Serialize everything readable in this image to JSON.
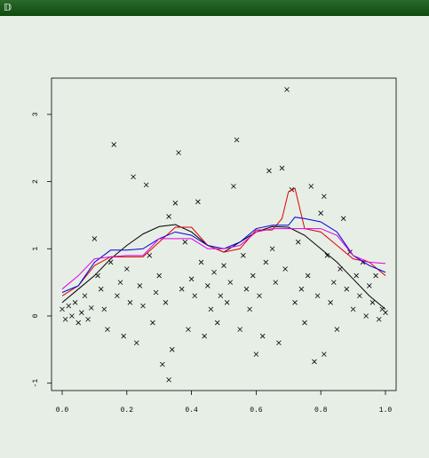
{
  "header": {
    "symbol": "𝔻"
  },
  "chart_data": {
    "type": "scatter",
    "xlim": [
      -0.033,
      1.033
    ],
    "ylim": [
      -1.11,
      3.54
    ],
    "xticks": [
      {
        "value": 0,
        "label": "0.0"
      },
      0.2,
      0.4,
      0.6,
      0.8,
      {
        "value": 1,
        "label": "1.0"
      }
    ],
    "yticks": [
      -1,
      0,
      1,
      2,
      3
    ],
    "series": [
      {
        "mode": "markers",
        "color": "#000000",
        "x": [
          0.16,
          0.36,
          0.22,
          0.26,
          0.54,
          0.64,
          0.68,
          0.695,
          0.71,
          0.53,
          0.77,
          0.81,
          0.42,
          0.35,
          0.33,
          0.8,
          0.87,
          0.1,
          0.33,
          0.31,
          0.6,
          0.78,
          0.81,
          0.0,
          0.01,
          0.02,
          0.03,
          0.04,
          0.05,
          0.06,
          0.07,
          0.08,
          0.09,
          0.11,
          0.12,
          0.13,
          0.14,
          0.15,
          0.17,
          0.18,
          0.19,
          0.2,
          0.21,
          0.23,
          0.24,
          0.25,
          0.27,
          0.28,
          0.29,
          0.3,
          0.32,
          0.34,
          0.37,
          0.38,
          0.39,
          0.4,
          0.41,
          0.43,
          0.44,
          0.45,
          0.46,
          0.47,
          0.48,
          0.49,
          0.5,
          0.51,
          0.52,
          0.55,
          0.56,
          0.57,
          0.58,
          0.59,
          0.61,
          0.62,
          0.63,
          0.65,
          0.66,
          0.67,
          0.69,
          0.72,
          0.73,
          0.74,
          0.75,
          0.76,
          0.79,
          0.82,
          0.83,
          0.84,
          0.85,
          0.86,
          0.88,
          0.89,
          0.9,
          0.91,
          0.92,
          0.93,
          0.94,
          0.95,
          0.96,
          0.97,
          0.98,
          0.99,
          1.0
        ],
        "values": [
          2.55,
          2.43,
          2.07,
          1.95,
          2.62,
          2.16,
          2.2,
          3.37,
          1.88,
          1.93,
          1.93,
          1.78,
          1.7,
          1.68,
          1.48,
          1.53,
          1.45,
          1.15,
          -0.95,
          -0.72,
          -0.57,
          -0.68,
          -0.57,
          0.1,
          -0.05,
          0.15,
          0.0,
          0.2,
          -0.1,
          0.05,
          0.3,
          -0.05,
          0.12,
          0.6,
          0.4,
          0.1,
          -0.2,
          0.8,
          0.3,
          0.5,
          -0.3,
          0.7,
          0.2,
          -0.4,
          0.45,
          0.15,
          0.9,
          -0.1,
          0.35,
          0.6,
          0.2,
          -0.5,
          0.4,
          1.1,
          -0.2,
          0.55,
          0.3,
          0.8,
          -0.3,
          0.45,
          0.1,
          0.65,
          -0.1,
          0.3,
          0.75,
          0.2,
          0.5,
          -0.2,
          0.9,
          0.4,
          0.1,
          0.6,
          0.3,
          -0.3,
          0.8,
          1.0,
          0.5,
          -0.4,
          0.7,
          0.2,
          1.1,
          0.4,
          -0.1,
          0.6,
          0.3,
          0.9,
          0.2,
          0.5,
          -0.2,
          0.7,
          0.4,
          0.95,
          0.1,
          0.6,
          0.3,
          0.8,
          0.0,
          0.45,
          0.2,
          0.6,
          -0.05,
          0.1,
          0.05
        ]
      },
      {
        "mode": "line",
        "color": "#000000",
        "x": [
          0,
          0.05,
          0.1,
          0.15,
          0.2,
          0.25,
          0.3,
          0.35,
          0.4,
          0.45,
          0.5,
          0.55,
          0.6,
          0.65,
          0.7,
          0.75,
          0.8,
          0.85,
          0.9,
          0.95,
          1.0
        ],
        "values": [
          0.2,
          0.4,
          0.6,
          0.85,
          1.05,
          1.22,
          1.33,
          1.36,
          1.25,
          1.05,
          0.95,
          1.1,
          1.25,
          1.33,
          1.32,
          1.2,
          1.0,
          0.8,
          0.55,
          0.3,
          0.1
        ]
      },
      {
        "mode": "line",
        "color": "#e00000",
        "x": [
          0,
          0.05,
          0.1,
          0.15,
          0.2,
          0.25,
          0.3,
          0.35,
          0.4,
          0.45,
          0.5,
          0.55,
          0.6,
          0.65,
          0.68,
          0.7,
          0.72,
          0.75,
          0.8,
          0.85,
          0.9,
          0.95,
          1.0
        ],
        "values": [
          0.3,
          0.45,
          0.75,
          0.88,
          0.88,
          0.88,
          1.1,
          1.32,
          1.32,
          1.05,
          0.95,
          1.0,
          1.28,
          1.28,
          1.45,
          1.85,
          1.9,
          1.3,
          1.25,
          1.05,
          0.85,
          0.8,
          0.6
        ]
      },
      {
        "mode": "line",
        "color": "#0000e0",
        "x": [
          0,
          0.05,
          0.1,
          0.15,
          0.2,
          0.25,
          0.3,
          0.35,
          0.4,
          0.45,
          0.5,
          0.55,
          0.6,
          0.65,
          0.7,
          0.72,
          0.75,
          0.8,
          0.85,
          0.9,
          0.95,
          1.0
        ],
        "values": [
          0.35,
          0.45,
          0.8,
          0.98,
          0.98,
          1.0,
          1.15,
          1.25,
          1.2,
          1.05,
          1.0,
          1.1,
          1.3,
          1.35,
          1.35,
          1.47,
          1.45,
          1.4,
          1.25,
          0.9,
          0.75,
          0.65
        ]
      },
      {
        "mode": "line",
        "color": "#e000e0",
        "x": [
          0,
          0.05,
          0.1,
          0.15,
          0.2,
          0.25,
          0.3,
          0.35,
          0.4,
          0.45,
          0.5,
          0.55,
          0.6,
          0.65,
          0.7,
          0.75,
          0.8,
          0.85,
          0.9,
          0.95,
          1.0
        ],
        "values": [
          0.4,
          0.6,
          0.85,
          0.88,
          0.9,
          0.9,
          1.15,
          1.15,
          1.15,
          1.0,
          1.0,
          1.05,
          1.25,
          1.3,
          1.3,
          1.3,
          1.3,
          1.2,
          0.9,
          0.8,
          0.78
        ]
      }
    ]
  }
}
